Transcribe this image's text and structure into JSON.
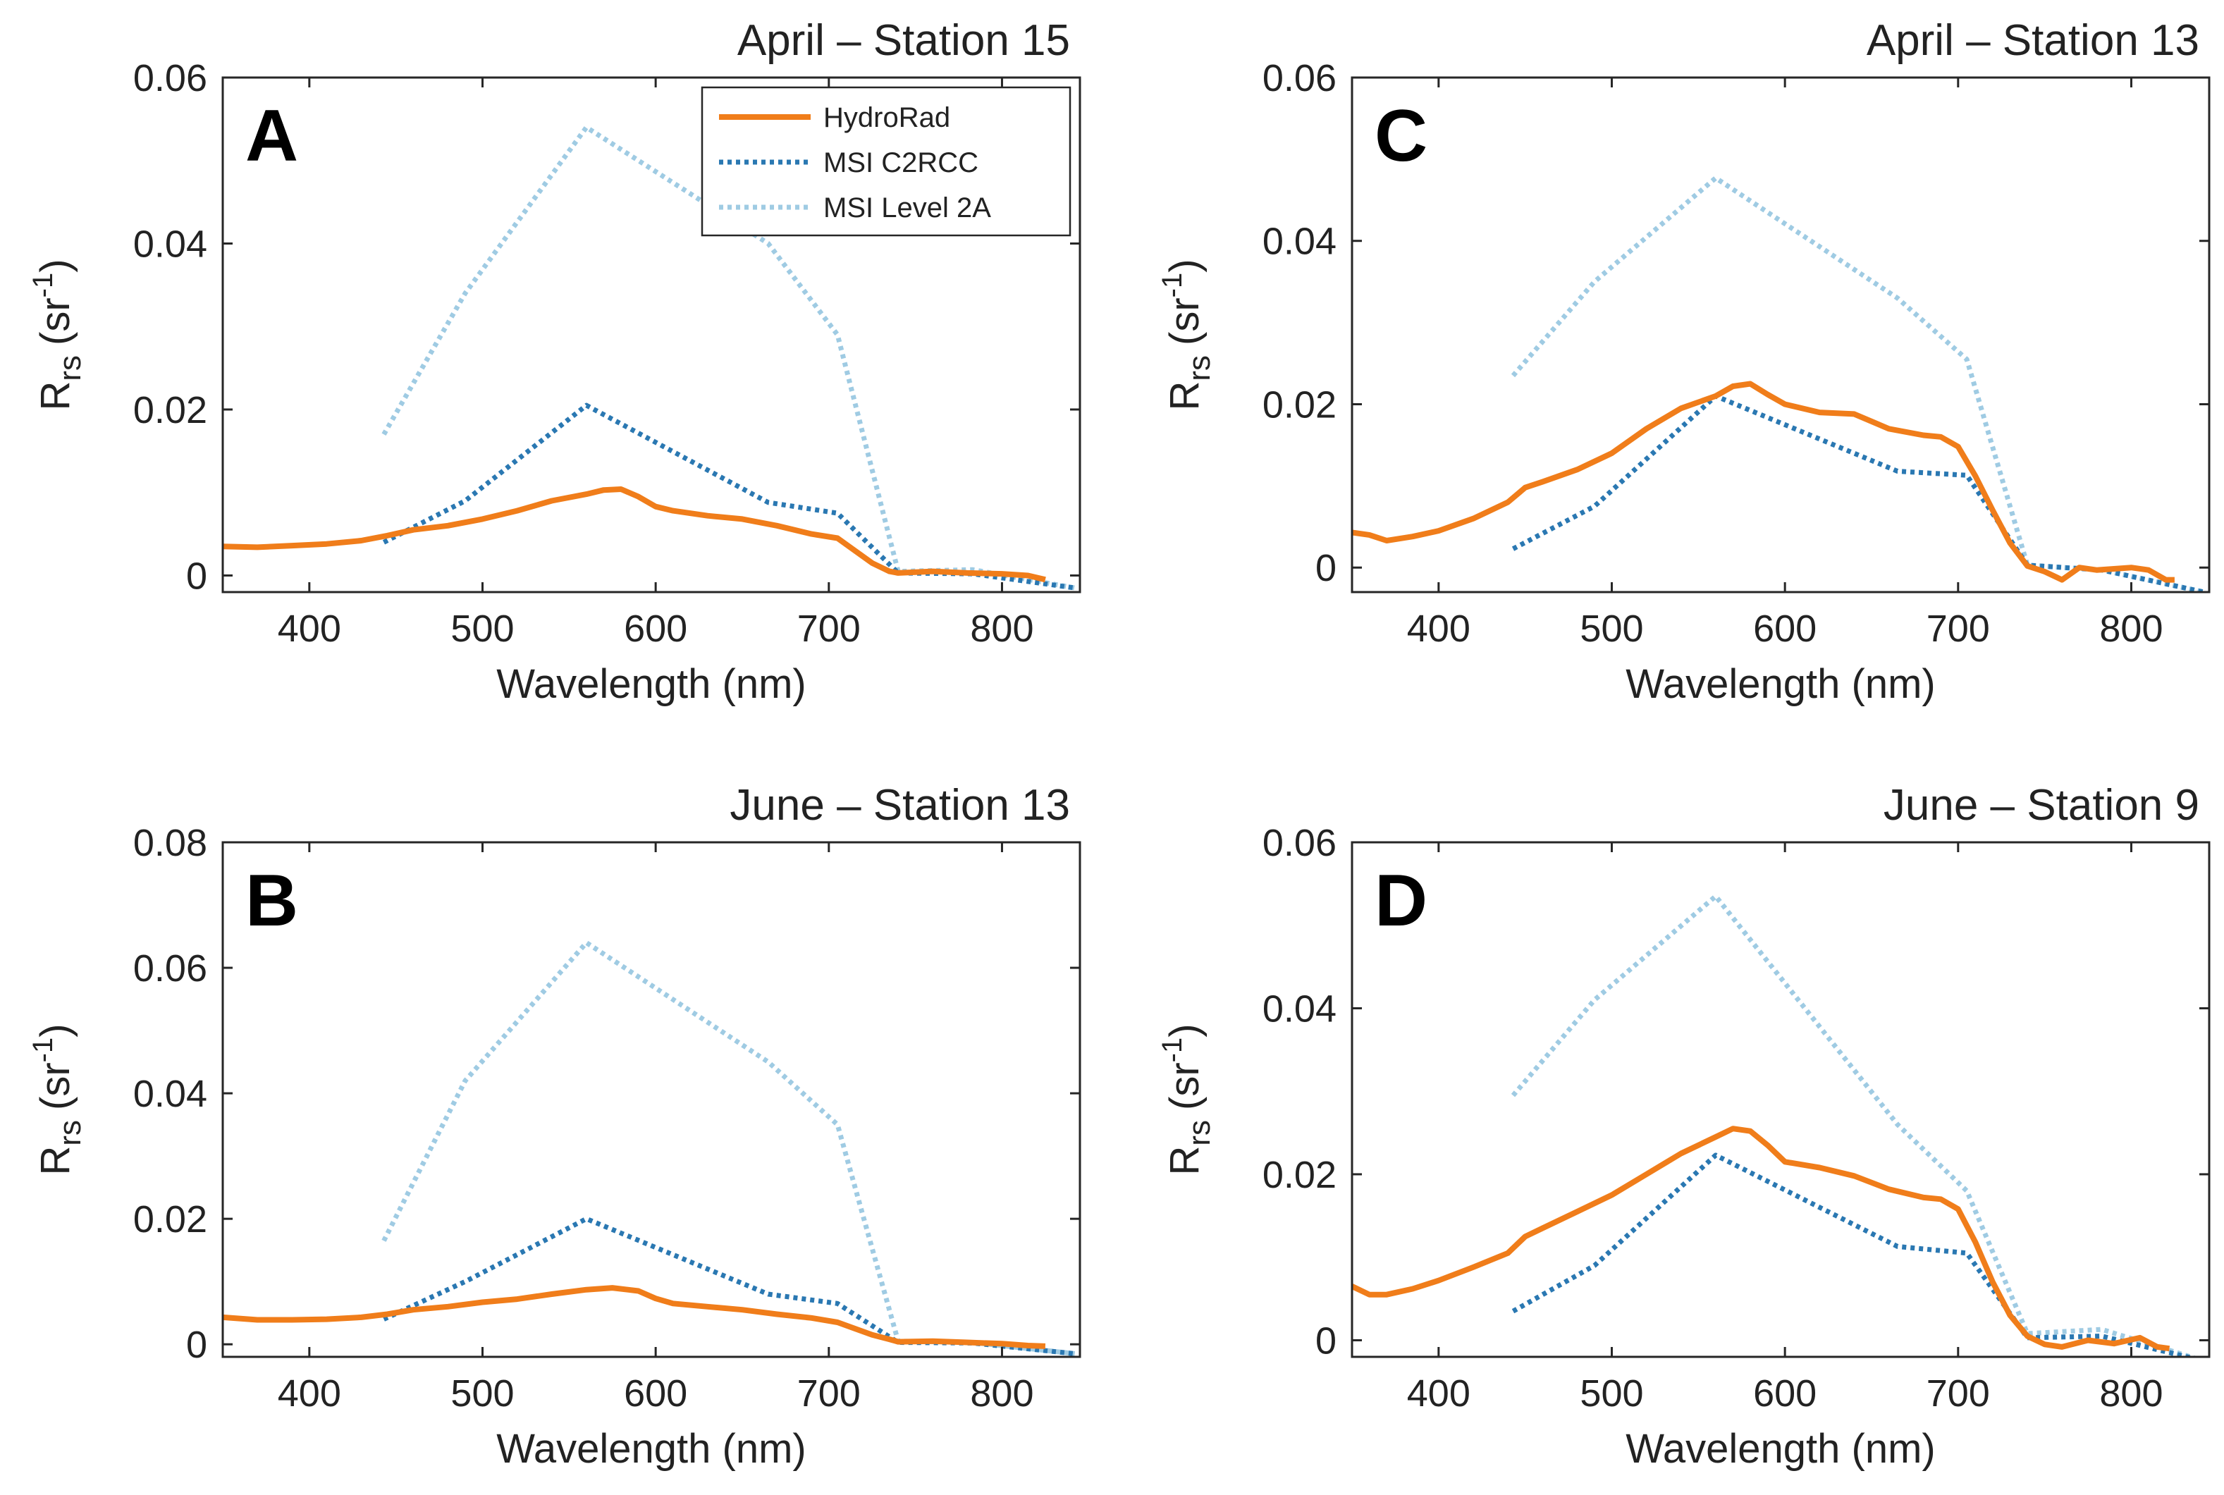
{
  "colors": {
    "hydrorad": "#F07D1A",
    "c2rcc": "#2A78B2",
    "level2a": "#9FCBE3"
  },
  "chart_data": [
    {
      "type": "line",
      "panel": "A",
      "title": "April – Station 15",
      "xlabel": "Wavelength (nm)",
      "ylabel_main": "R",
      "ylabel_sub": "rs",
      "ylabel_unit": "(sr",
      "ylabel_sup": "-1",
      "ylabel_close": ")",
      "xlim": [
        350,
        845
      ],
      "ylim": [
        -0.002,
        0.06
      ],
      "xticks": [
        400,
        500,
        600,
        700,
        800
      ],
      "yticks": [
        0,
        0.02,
        0.04,
        0.06
      ],
      "ytick_labels": [
        "0",
        "0.02",
        "0.04",
        "0.06"
      ],
      "legend": {
        "location": "top-right",
        "entries": [
          "HydroRad",
          "MSI C2RCC",
          "MSI Level 2A"
        ]
      },
      "series": [
        {
          "name": "HydroRad",
          "style": "solid",
          "x": [
            350,
            370,
            390,
            410,
            430,
            445,
            460,
            480,
            500,
            520,
            540,
            560,
            570,
            580,
            590,
            600,
            610,
            630,
            650,
            670,
            690,
            705,
            715,
            725,
            735,
            740,
            760,
            780,
            800,
            815,
            825
          ],
          "y": [
            0.0035,
            0.0034,
            0.0036,
            0.0038,
            0.0042,
            0.0048,
            0.0055,
            0.006,
            0.0068,
            0.0078,
            0.009,
            0.0098,
            0.0103,
            0.0104,
            0.0095,
            0.0083,
            0.0078,
            0.0072,
            0.0068,
            0.006,
            0.005,
            0.0045,
            0.003,
            0.0015,
            0.0005,
            0.0003,
            0.0005,
            0.0003,
            0.0002,
            0.0,
            -0.0005
          ]
        },
        {
          "name": "MSI C2RCC",
          "style": "dotted",
          "x": [
            443,
            490,
            560,
            665,
            705,
            740,
            783,
            842
          ],
          "y": [
            0.004,
            0.009,
            0.0205,
            0.0088,
            0.0075,
            0.0003,
            0.0002,
            -0.0015
          ]
        },
        {
          "name": "MSI Level 2A",
          "style": "dotted",
          "x": [
            443,
            490,
            560,
            665,
            705,
            740,
            783,
            842
          ],
          "y": [
            0.017,
            0.034,
            0.054,
            0.04,
            0.029,
            0.0005,
            0.0007,
            -0.0015
          ]
        }
      ]
    },
    {
      "type": "line",
      "panel": "B",
      "title": "June – Station 13",
      "xlabel": "Wavelength (nm)",
      "ylabel_main": "R",
      "ylabel_sub": "rs",
      "ylabel_unit": "(sr",
      "ylabel_sup": "-1",
      "ylabel_close": ")",
      "xlim": [
        350,
        845
      ],
      "ylim": [
        -0.002,
        0.08
      ],
      "xticks": [
        400,
        500,
        600,
        700,
        800
      ],
      "yticks": [
        0,
        0.02,
        0.04,
        0.06,
        0.08
      ],
      "ytick_labels": [
        "0",
        "0.02",
        "0.04",
        "0.06",
        "0.08"
      ],
      "series": [
        {
          "name": "HydroRad",
          "style": "solid",
          "x": [
            350,
            370,
            390,
            410,
            430,
            445,
            460,
            480,
            500,
            520,
            540,
            560,
            575,
            590,
            600,
            610,
            630,
            650,
            670,
            690,
            705,
            715,
            725,
            735,
            740,
            760,
            780,
            800,
            815,
            825
          ],
          "y": [
            0.0043,
            0.0039,
            0.0039,
            0.004,
            0.0043,
            0.0048,
            0.0055,
            0.006,
            0.0067,
            0.0072,
            0.008,
            0.0087,
            0.009,
            0.0085,
            0.0073,
            0.0065,
            0.006,
            0.0055,
            0.0048,
            0.0042,
            0.0035,
            0.0025,
            0.0015,
            0.0008,
            0.0004,
            0.0005,
            0.0003,
            0.0001,
            -0.0002,
            -0.0003
          ]
        },
        {
          "name": "MSI C2RCC",
          "style": "dotted",
          "x": [
            443,
            490,
            560,
            665,
            705,
            740,
            783,
            842
          ],
          "y": [
            0.004,
            0.01,
            0.02,
            0.008,
            0.0065,
            0.0003,
            0.0002,
            -0.0015
          ]
        },
        {
          "name": "MSI Level 2A",
          "style": "dotted",
          "x": [
            443,
            490,
            560,
            665,
            705,
            740,
            783,
            842
          ],
          "y": [
            0.0165,
            0.042,
            0.064,
            0.045,
            0.035,
            0.0005,
            0.0003,
            -0.0015
          ]
        }
      ]
    },
    {
      "type": "line",
      "panel": "C",
      "title": "April – Station 13",
      "xlabel": "Wavelength (nm)",
      "ylabel_main": "R",
      "ylabel_sub": "rs",
      "ylabel_unit": "(sr",
      "ylabel_sup": "-1",
      "ylabel_close": ")",
      "xlim": [
        350,
        845
      ],
      "ylim": [
        -0.003,
        0.06
      ],
      "xticks": [
        400,
        500,
        600,
        700,
        800
      ],
      "yticks": [
        0,
        0.02,
        0.04,
        0.06
      ],
      "ytick_labels": [
        "0",
        "0.02",
        "0.04",
        "0.06"
      ],
      "series": [
        {
          "name": "HydroRad",
          "style": "solid",
          "x": [
            350,
            360,
            370,
            385,
            400,
            420,
            440,
            450,
            460,
            480,
            500,
            520,
            540,
            560,
            570,
            580,
            590,
            600,
            620,
            640,
            660,
            680,
            690,
            700,
            710,
            720,
            730,
            740,
            750,
            760,
            770,
            780,
            800,
            810,
            820,
            825
          ],
          "y": [
            0.0043,
            0.004,
            0.0033,
            0.0038,
            0.0045,
            0.006,
            0.008,
            0.0098,
            0.0105,
            0.012,
            0.014,
            0.017,
            0.0195,
            0.021,
            0.0222,
            0.0225,
            0.0212,
            0.02,
            0.019,
            0.0188,
            0.017,
            0.0162,
            0.016,
            0.0148,
            0.0112,
            0.007,
            0.003,
            0.0002,
            -0.0005,
            -0.0015,
            0.0,
            -0.0003,
            0.0,
            -0.0003,
            -0.0015,
            -0.0015
          ]
        },
        {
          "name": "MSI C2RCC",
          "style": "dotted",
          "x": [
            443,
            490,
            560,
            665,
            705,
            740,
            783,
            842
          ],
          "y": [
            0.0023,
            0.0075,
            0.021,
            0.0118,
            0.0113,
            0.0003,
            -0.0003,
            -0.003
          ]
        },
        {
          "name": "MSI Level 2A",
          "style": "dotted",
          "x": [
            443,
            490,
            560,
            665,
            705,
            740,
            783,
            842
          ],
          "y": [
            0.0235,
            0.035,
            0.0477,
            0.033,
            0.0255,
            0.0003,
            -0.0003,
            -0.003
          ]
        }
      ]
    },
    {
      "type": "line",
      "panel": "D",
      "title": "June – Station 9",
      "xlabel": "Wavelength (nm)",
      "ylabel_main": "R",
      "ylabel_sub": "rs",
      "ylabel_unit": "(sr",
      "ylabel_sup": "-1",
      "ylabel_close": ")",
      "xlim": [
        350,
        845
      ],
      "ylim": [
        -0.002,
        0.06
      ],
      "xticks": [
        400,
        500,
        600,
        700,
        800
      ],
      "yticks": [
        0,
        0.02,
        0.04,
        0.06
      ],
      "ytick_labels": [
        "0",
        "0.02",
        "0.04",
        "0.06"
      ],
      "series": [
        {
          "name": "HydroRad",
          "style": "solid",
          "x": [
            350,
            360,
            370,
            385,
            400,
            420,
            440,
            450,
            460,
            480,
            500,
            520,
            540,
            560,
            570,
            580,
            590,
            600,
            620,
            640,
            660,
            680,
            690,
            700,
            710,
            720,
            730,
            740,
            750,
            760,
            775,
            790,
            805,
            815,
            822
          ],
          "y": [
            0.0065,
            0.0055,
            0.0055,
            0.0062,
            0.0072,
            0.0088,
            0.0105,
            0.0125,
            0.0135,
            0.0155,
            0.0175,
            0.02,
            0.0225,
            0.0245,
            0.0255,
            0.0252,
            0.0235,
            0.0215,
            0.0208,
            0.0198,
            0.0182,
            0.0172,
            0.017,
            0.0158,
            0.0118,
            0.007,
            0.003,
            0.0005,
            -0.0005,
            -0.0008,
            0.0,
            -0.0004,
            0.0003,
            -0.0008,
            -0.001
          ]
        },
        {
          "name": "MSI C2RCC",
          "style": "dotted",
          "x": [
            443,
            490,
            560,
            665,
            705,
            740,
            783,
            842
          ],
          "y": [
            0.0035,
            0.009,
            0.0223,
            0.0113,
            0.0105,
            0.0003,
            0.0005,
            -0.0025
          ]
        },
        {
          "name": "MSI Level 2A",
          "style": "dotted",
          "x": [
            443,
            490,
            560,
            665,
            705,
            740,
            783,
            842
          ],
          "y": [
            0.0295,
            0.041,
            0.0535,
            0.026,
            0.018,
            0.0008,
            0.0013,
            -0.0025
          ]
        }
      ]
    }
  ]
}
